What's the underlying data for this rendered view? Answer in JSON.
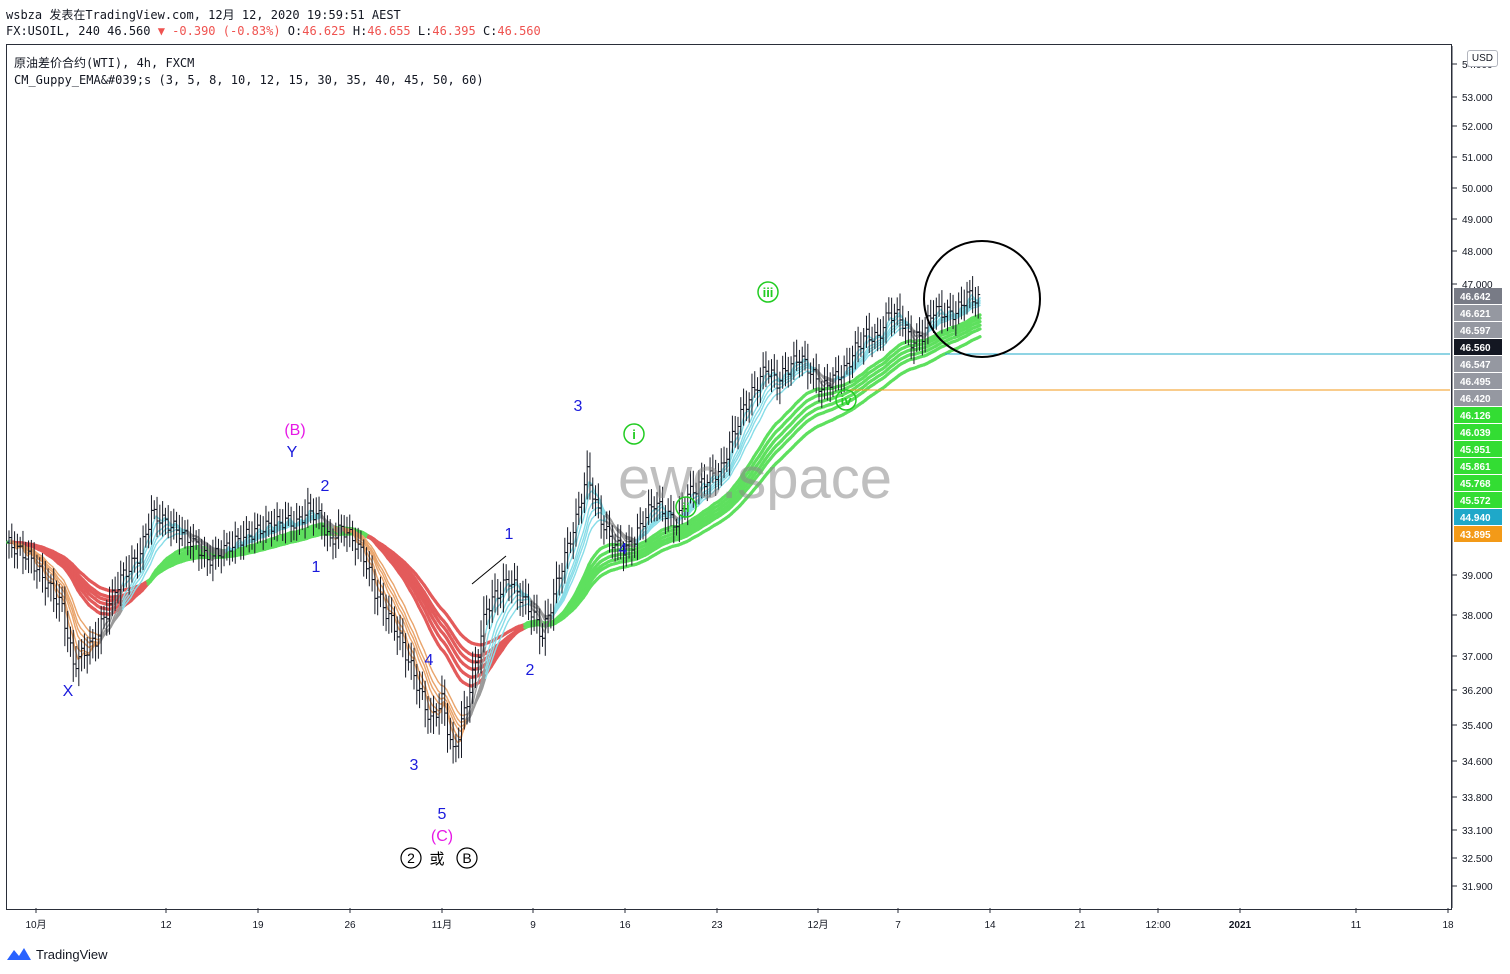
{
  "header": {
    "line1": "wsbza 发表在TradingView.com, 12月 12, 2020 19:59:51 AEST",
    "symbol": "FX:USOIL, 240 46.560",
    "change": "▼ -0.390 (-0.83%)",
    "o_label": "O:",
    "o_val": "46.625",
    "h_label": "H:",
    "h_val": "46.655",
    "l_label": "L:",
    "l_val": "46.395",
    "c_label": "C:",
    "c_val": "46.560"
  },
  "legend": {
    "title": "原油差价合约(WTI), 4h, FXCM",
    "indicator": "CM_Guppy_EMA&#039;s (3, 5, 8, 10, 12, 15, 30, 35, 40, 45, 50, 60)"
  },
  "currency_button": "USD",
  "watermark": "ewc.space",
  "footer": {
    "brand": "TradingView",
    "icon": "tradingview-logo"
  },
  "colors": {
    "bull_ribbon": "#5ee05e",
    "bear_ribbon": "#e35b5b",
    "fast_up": "#88dde8",
    "fast_down": "#e9a46b",
    "neutral": "#9a9a9a",
    "wave_blue": "#1a1adc",
    "wave_magenta": "#e619e6",
    "wave_green": "#22cc22"
  },
  "chart_data": {
    "type": "candlestick",
    "x_ticks": [
      "10月",
      "12",
      "19",
      "26",
      "11月",
      "9",
      "16",
      "23",
      "12月",
      "7",
      "14",
      "21",
      "12:00",
      "2021",
      "11",
      "18"
    ],
    "y_ticks": [
      "54.000",
      "53.000",
      "52.000",
      "51.000",
      "50.000",
      "49.000",
      "48.000",
      "47.000",
      "39.000",
      "38.000",
      "37.000",
      "36.200",
      "35.400",
      "34.600",
      "33.800",
      "33.100",
      "32.500",
      "31.900"
    ],
    "price_badges": [
      {
        "label": "46.642",
        "color": "#787b86"
      },
      {
        "label": "46.621",
        "color": "#9598a1"
      },
      {
        "label": "46.597",
        "color": "#9598a1"
      },
      {
        "label": "46.560",
        "color": "#131722"
      },
      {
        "label": "46.547",
        "color": "#9598a1"
      },
      {
        "label": "46.495",
        "color": "#9598a1"
      },
      {
        "label": "46.420",
        "color": "#9598a1"
      },
      {
        "label": "46.126",
        "color": "#33dd33"
      },
      {
        "label": "46.039",
        "color": "#33dd33"
      },
      {
        "label": "45.951",
        "color": "#33dd33"
      },
      {
        "label": "45.861",
        "color": "#33dd33"
      },
      {
        "label": "45.768",
        "color": "#33dd33"
      },
      {
        "label": "45.572",
        "color": "#33dd33"
      },
      {
        "label": "44.940",
        "color": "#1fa8c9"
      },
      {
        "label": "43.895",
        "color": "#f39a18"
      }
    ],
    "horizontal_lines": [
      {
        "price": 46.56,
        "color": "#1fa8c9"
      },
      {
        "price": 44.94,
        "color": "#f39a18"
      }
    ],
    "wave_labels": [
      {
        "text": "X",
        "color": "blue"
      },
      {
        "text": "(B)",
        "color": "magenta"
      },
      {
        "text": "Y",
        "color": "blue"
      },
      {
        "text": "2",
        "color": "blue"
      },
      {
        "text": "1",
        "color": "blue"
      },
      {
        "text": "4",
        "color": "blue"
      },
      {
        "text": "3",
        "color": "blue"
      },
      {
        "text": "5",
        "color": "blue"
      },
      {
        "text": "(C)",
        "color": "magenta"
      },
      {
        "text": "1",
        "color": "blue"
      },
      {
        "text": "2",
        "color": "blue"
      },
      {
        "text": "3",
        "color": "blue"
      },
      {
        "text": "4",
        "color": "blue"
      },
      {
        "text": "i",
        "color": "green"
      },
      {
        "text": "ii",
        "color": "green"
      },
      {
        "text": "iii",
        "color": "green"
      },
      {
        "text": "iv",
        "color": "green"
      }
    ],
    "bottom_annotation": {
      "left": "2",
      "middle": "或",
      "right": "B"
    },
    "price_path": [
      [
        0,
        39.9
      ],
      [
        2,
        39.5
      ],
      [
        5,
        38.2
      ],
      [
        6,
        36.8
      ],
      [
        8,
        37.4
      ],
      [
        10,
        38.8
      ],
      [
        12,
        39.6
      ],
      [
        13,
        40.7
      ],
      [
        15,
        40.3
      ],
      [
        17,
        39.8
      ],
      [
        18,
        39.4
      ],
      [
        19,
        39.6
      ],
      [
        21,
        40.0
      ],
      [
        23,
        40.3
      ],
      [
        25,
        40.5
      ],
      [
        26,
        40.4
      ],
      [
        27,
        40.8
      ],
      [
        28,
        40.6
      ],
      [
        29,
        39.9
      ],
      [
        30,
        40.3
      ],
      [
        31,
        40.0
      ],
      [
        32,
        39.5
      ],
      [
        33,
        38.6
      ],
      [
        35,
        37.6
      ],
      [
        36,
        36.9
      ],
      [
        38,
        35.4
      ],
      [
        39,
        35.9
      ],
      [
        40,
        34.6
      ],
      [
        41,
        35.6
      ],
      [
        42,
        36.8
      ],
      [
        43,
        38.2
      ],
      [
        45,
        38.9
      ],
      [
        47,
        38.1
      ],
      [
        48,
        37.5
      ],
      [
        49,
        38.5
      ],
      [
        50,
        39.5
      ],
      [
        51,
        40.5
      ],
      [
        52,
        41.8
      ],
      [
        53,
        40.7
      ],
      [
        54,
        40.0
      ],
      [
        55,
        39.7
      ],
      [
        56,
        39.8
      ],
      [
        57,
        40.5
      ],
      [
        58,
        41.0
      ],
      [
        60,
        40.4
      ],
      [
        61,
        41.2
      ],
      [
        63,
        41.7
      ],
      [
        64,
        41.9
      ],
      [
        65,
        42.8
      ],
      [
        66,
        43.6
      ],
      [
        67,
        44.1
      ],
      [
        68,
        44.7
      ],
      [
        69,
        44.3
      ],
      [
        70,
        44.7
      ],
      [
        71,
        45.0
      ],
      [
        72,
        44.6
      ],
      [
        73,
        44.1
      ],
      [
        74,
        44.4
      ],
      [
        75,
        44.6
      ],
      [
        76,
        45.2
      ],
      [
        77,
        45.6
      ],
      [
        78,
        45.5
      ],
      [
        79,
        46.2
      ],
      [
        80,
        46.1
      ],
      [
        81,
        45.4
      ],
      [
        82,
        45.6
      ],
      [
        83,
        46.3
      ],
      [
        84,
        46.2
      ],
      [
        85,
        46.2
      ],
      [
        86,
        46.7
      ],
      [
        87,
        46.56
      ]
    ],
    "bar_count": 87,
    "ylim": [
      31.5,
      54.2
    ]
  }
}
